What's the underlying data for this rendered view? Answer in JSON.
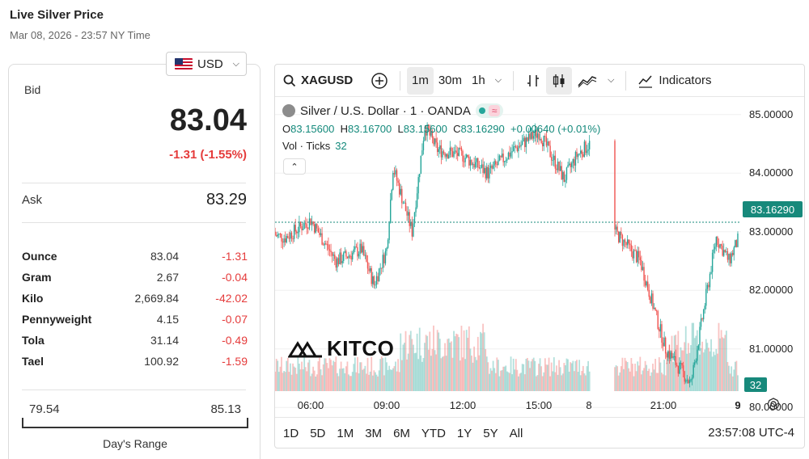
{
  "header": {
    "title": "Live Silver Price",
    "subtitle": "Mar 08, 2026 - 23:57 NY Time"
  },
  "currency": {
    "selected": "USD"
  },
  "quote": {
    "bid_label": "Bid",
    "bid_value": "83.04",
    "bid_change": "-1.31 (-1.55%)",
    "ask_label": "Ask",
    "ask_value": "83.29"
  },
  "units": [
    {
      "name": "Ounce",
      "price": "83.04",
      "change": "-1.31"
    },
    {
      "name": "Gram",
      "price": "2.67",
      "change": "-0.04"
    },
    {
      "name": "Kilo",
      "price": "2,669.84",
      "change": "-42.02"
    },
    {
      "name": "Pennyweight",
      "price": "4.15",
      "change": "-0.07"
    },
    {
      "name": "Tola",
      "price": "31.14",
      "change": "-0.49"
    },
    {
      "name": "Tael",
      "price": "100.92",
      "change": "-1.59"
    }
  ],
  "days_range": {
    "low": "79.54",
    "high": "85.13",
    "label": "Day's Range"
  },
  "toolbar": {
    "symbol": "XAGUSD",
    "intervals": [
      "1m",
      "30m",
      "1h"
    ],
    "active_interval": "1m",
    "indicators_label": "Indicators"
  },
  "legend": {
    "name": "Silver / U.S. Dollar · 1 · OANDA",
    "o_label": "O",
    "o": "83.15600",
    "h_label": "H",
    "h": "83.16700",
    "l_label": "L",
    "l": "83.15600",
    "c_label": "C",
    "c": "83.16290",
    "change": "+0.00640 (+0.01%)",
    "vol_label": "Vol · Ticks",
    "vol_value": "32"
  },
  "price_axis": [
    "85.00000",
    "84.00000",
    "83.00000",
    "82.00000",
    "81.00000",
    "80.00000"
  ],
  "current_price": "83.16290",
  "current_volume": "32",
  "time_axis": [
    {
      "label": "06:00",
      "bold": false
    },
    {
      "label": "09:00",
      "bold": false
    },
    {
      "label": "12:00",
      "bold": false
    },
    {
      "label": "15:00",
      "bold": false
    },
    {
      "label": "8",
      "bold": false
    },
    {
      "label": "21:00",
      "bold": false
    },
    {
      "label": "9",
      "bold": true
    }
  ],
  "ranges": [
    "1D",
    "5D",
    "1M",
    "3M",
    "6M",
    "YTD",
    "1Y",
    "5Y",
    "All"
  ],
  "clock": "23:57:08 UTC-4",
  "watermark": "KITCO",
  "colors": {
    "up": "#26a69a",
    "down": "#ef5350",
    "accent": "#17897b",
    "negative": "#e53b3b"
  },
  "chart_data": {
    "type": "candlestick",
    "series": [
      {
        "name": "Silver / U.S. Dollar",
        "waypoints_time": [
          "04:00",
          "05:00",
          "06:00",
          "07:00",
          "08:00",
          "08:30",
          "09:00",
          "09:15",
          "10:00",
          "10:30",
          "11:00",
          "12:00",
          "13:00",
          "14:00",
          "15:00",
          "15:30",
          "16:00",
          "16:30",
          "17:00",
          "18:00",
          "19:00",
          "20:00",
          "20:30",
          "21:00",
          "22:00",
          "22:30",
          "23:00",
          "23:30",
          "23:57"
        ],
        "waypoints_price": [
          83.0,
          82.9,
          83.2,
          82.5,
          82.7,
          82.1,
          82.7,
          84.1,
          83.0,
          84.8,
          84.4,
          84.3,
          84.0,
          84.4,
          84.7,
          84.3,
          83.9,
          84.3,
          84.5,
          83.0,
          82.5,
          81.0,
          80.7,
          80.4,
          82.9,
          82.5,
          83.0,
          83.2,
          83.16
        ]
      }
    ],
    "ylim": [
      79.7,
      85.3
    ]
  }
}
